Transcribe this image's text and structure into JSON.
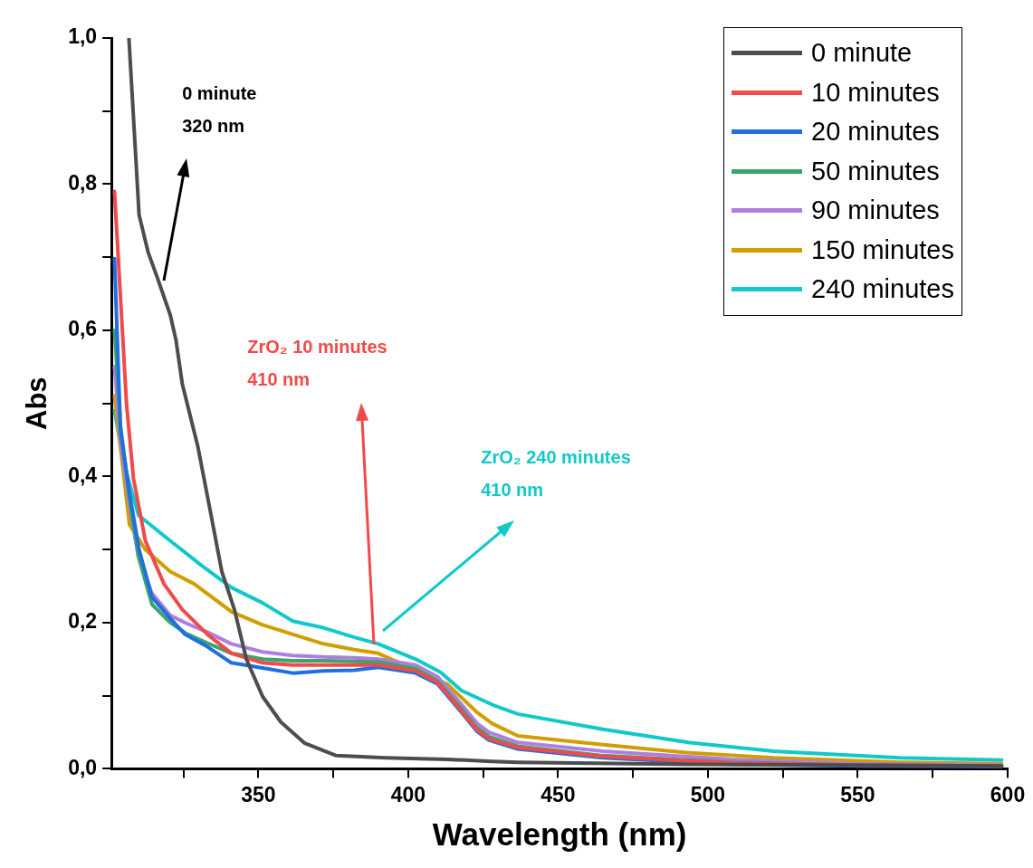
{
  "chart_data": {
    "type": "line",
    "xlabel": "Wavelength (nm)",
    "ylabel": "Abs",
    "xlim": [
      301,
      600
    ],
    "ylim": [
      0,
      1.0
    ],
    "xticks": [
      {
        "value": 325,
        "label": null
      },
      350,
      {
        "value": 375,
        "label": null
      },
      400,
      {
        "value": 425,
        "label": null
      },
      450,
      {
        "value": 475,
        "label": null
      },
      500,
      {
        "value": 525,
        "label": null
      },
      550,
      {
        "value": 575,
        "label": null
      },
      600
    ],
    "yticks": [
      {
        "value": 0,
        "label": "0,0"
      },
      {
        "value": 0.1,
        "label": null
      },
      {
        "value": 0.2,
        "label": "0,2"
      },
      {
        "value": 0.3,
        "label": null
      },
      {
        "value": 0.4,
        "label": "0,4"
      },
      {
        "value": 0.5,
        "label": null
      },
      {
        "value": 0.6,
        "label": "0,6"
      },
      {
        "value": 0.7,
        "label": null
      },
      {
        "value": 0.8,
        "label": "0,8"
      },
      {
        "value": 0.9,
        "label": null
      },
      {
        "value": 1.0,
        "label": "1,0"
      }
    ],
    "grid": false,
    "legend": "top right",
    "marker": "none",
    "line_style": "solid",
    "annotations": [
      "0 minute\n320 nm",
      "ZrO₂ 10 minutes\n410 nm",
      "ZrO₂ 240 minutes\n410 nm"
    ],
    "series": [
      {
        "name": "0 minute",
        "color": "#4d4d4d",
        "x": [
          306.8,
          310.2,
          313.2,
          316.3,
          320.6,
          322.5,
          324.6,
          329.8,
          333.8,
          337.8,
          342,
          346,
          351.4,
          357.5,
          365.5,
          376,
          392.3,
          413,
          428,
          436.6,
          493.5,
          598
        ],
        "values": [
          1.0,
          0.758,
          0.707,
          0.672,
          0.621,
          0.587,
          0.527,
          0.441,
          0.356,
          0.27,
          0.218,
          0.15,
          0.099,
          0.064,
          0.035,
          0.018,
          0.015,
          0.013,
          0.01,
          0.009,
          0.006,
          0.004
        ]
      },
      {
        "name": "10 minutes",
        "color": "#f04a4a",
        "x": [
          302,
          306,
          308.3,
          312.3,
          318.5,
          324.6,
          333,
          341,
          351.4,
          361.5,
          371.7,
          382,
          390,
          402.5,
          409.8,
          417.8,
          423,
          427,
          436.6,
          465,
          507.7,
          550,
          598
        ],
        "values": [
          0.79,
          0.5,
          0.398,
          0.312,
          0.253,
          0.218,
          0.184,
          0.158,
          0.145,
          0.142,
          0.142,
          0.142,
          0.142,
          0.134,
          0.118,
          0.079,
          0.053,
          0.041,
          0.029,
          0.017,
          0.008,
          0.005,
          0.004
        ]
      },
      {
        "name": "20 minutes",
        "color": "#1f6fe0",
        "x": [
          302,
          304,
          307,
          310.2,
          314.5,
          320.6,
          325.5,
          333,
          341,
          351.4,
          361.5,
          371.7,
          382,
          390,
          402.5,
          409.8,
          417.8,
          423,
          427,
          436.6,
          465,
          507.7,
          550,
          598
        ],
        "values": [
          0.698,
          0.463,
          0.377,
          0.3,
          0.235,
          0.206,
          0.184,
          0.167,
          0.145,
          0.138,
          0.131,
          0.134,
          0.135,
          0.139,
          0.131,
          0.116,
          0.077,
          0.051,
          0.039,
          0.027,
          0.015,
          0.006,
          0.004,
          0.003
        ]
      },
      {
        "name": "50 minutes",
        "color": "#3aa56a",
        "x": [
          302,
          304,
          307,
          310,
          314.5,
          320.6,
          326,
          333,
          341,
          351.4,
          361.5,
          371.7,
          382,
          390,
          402.5,
          409.8,
          417.8,
          423,
          427,
          436.6,
          465,
          507.7,
          550,
          598
        ],
        "values": [
          0.6,
          0.47,
          0.37,
          0.29,
          0.225,
          0.2,
          0.185,
          0.172,
          0.158,
          0.15,
          0.148,
          0.148,
          0.147,
          0.146,
          0.137,
          0.12,
          0.082,
          0.056,
          0.044,
          0.031,
          0.018,
          0.009,
          0.005,
          0.004
        ]
      },
      {
        "name": "90 minutes",
        "color": "#b07de0",
        "x": [
          302,
          304,
          307,
          310,
          314.5,
          320.6,
          326,
          333,
          341,
          351.4,
          361.5,
          371.7,
          382,
          390,
          402.5,
          409.8,
          417.8,
          423,
          427,
          436.6,
          465,
          507.7,
          550,
          598
        ],
        "values": [
          0.55,
          0.45,
          0.36,
          0.29,
          0.24,
          0.21,
          0.199,
          0.187,
          0.171,
          0.16,
          0.155,
          0.153,
          0.152,
          0.15,
          0.142,
          0.126,
          0.088,
          0.062,
          0.05,
          0.036,
          0.024,
          0.013,
          0.007,
          0.005
        ]
      },
      {
        "name": "150 minutes",
        "color": "#d19e00",
        "x": [
          302,
          307,
          312.3,
          320.6,
          328.6,
          341,
          351.4,
          361.5,
          371.7,
          382,
          390,
          402.5,
          413,
          423,
          428,
          436.6,
          465,
          493.5,
          522,
          564,
          598
        ],
        "values": [
          0.51,
          0.334,
          0.3,
          0.27,
          0.253,
          0.215,
          0.197,
          0.184,
          0.171,
          0.163,
          0.158,
          0.135,
          0.116,
          0.077,
          0.062,
          0.045,
          0.033,
          0.022,
          0.015,
          0.009,
          0.007
        ]
      },
      {
        "name": "240 minutes",
        "color": "#12c8c8",
        "x": [
          302,
          305,
          310,
          320.6,
          330.8,
          341,
          351.4,
          361.5,
          371.7,
          382,
          390,
          402.5,
          410.8,
          417.8,
          429,
          436.6,
          465,
          493.5,
          522,
          564,
          598
        ],
        "values": [
          0.49,
          0.42,
          0.347,
          0.312,
          0.279,
          0.248,
          0.227,
          0.202,
          0.193,
          0.18,
          0.171,
          0.15,
          0.132,
          0.107,
          0.086,
          0.075,
          0.054,
          0.036,
          0.024,
          0.015,
          0.012
        ]
      }
    ]
  }
}
